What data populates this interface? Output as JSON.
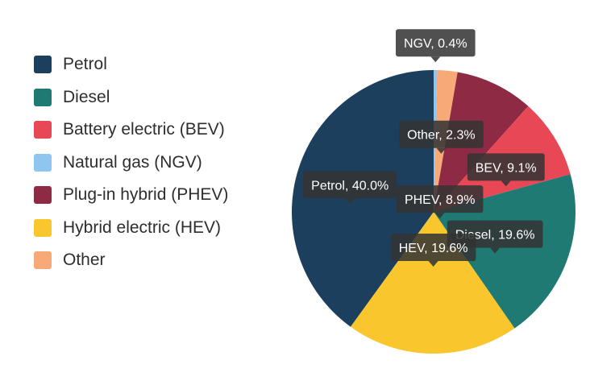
{
  "chart_data": {
    "type": "pie",
    "title": "",
    "legend_position": "left",
    "series": [
      {
        "name": "Petrol",
        "value": 40.0,
        "color": "#1d3f5e",
        "label": "Petrol, 40.0%"
      },
      {
        "name": "Diesel",
        "value": 19.6,
        "color": "#1f7a73",
        "label": "Diesel, 19.6%"
      },
      {
        "name": "Battery electric (BEV)",
        "value": 9.1,
        "color": "#e84855",
        "label": "BEV, 9.1%"
      },
      {
        "name": "Natural gas (NGV)",
        "value": 0.4,
        "color": "#8ec6ef",
        "label": "NGV, 0.4%"
      },
      {
        "name": "Plug-in hybrid (PHEV)",
        "value": 8.9,
        "color": "#8e2a43",
        "label": "PHEV, 8.9%"
      },
      {
        "name": "Hybrid electric (HEV)",
        "value": 19.6,
        "color": "#f9c62d",
        "label": "HEV, 19.6%"
      },
      {
        "name": "Other",
        "value": 2.3,
        "color": "#f8a978",
        "label": "Other, 2.3%"
      }
    ],
    "slice_order": [
      "Natural gas (NGV)",
      "Other",
      "Plug-in hybrid (PHEV)",
      "Battery electric (BEV)",
      "Diesel",
      "Hybrid electric (HEV)",
      "Petrol"
    ]
  }
}
